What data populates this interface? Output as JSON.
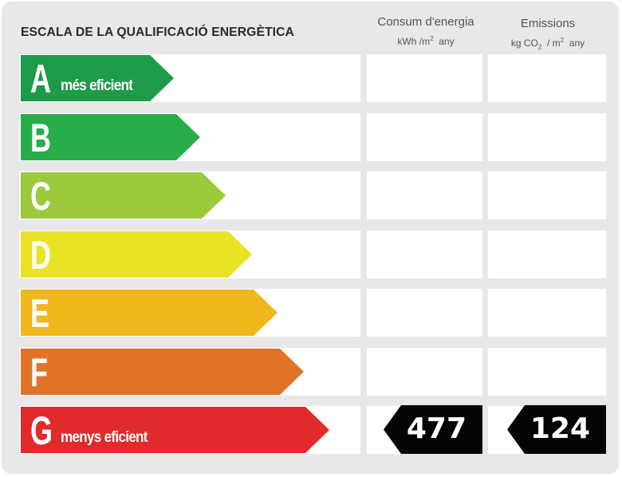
{
  "title": "ESCALA DE LA QUALIFICACIÓ ENERGÈTICA",
  "columns": {
    "energy": {
      "label": "Consum d'energia",
      "unit_prefix": "kWh /m",
      "unit_sup": "2",
      "unit_suffix": "any"
    },
    "emissions": {
      "label": "Emissions",
      "unit_prefix": "kg CO",
      "unit_sub": "2",
      "unit_mid": "/ m",
      "unit_sup": "2",
      "unit_suffix": "any"
    }
  },
  "classes": [
    {
      "letter": "A",
      "description": "més eficient",
      "color": "#1e9b48"
    },
    {
      "letter": "B",
      "description": "",
      "color": "#29ad4a"
    },
    {
      "letter": "C",
      "description": "",
      "color": "#9cc83c"
    },
    {
      "letter": "D",
      "description": "",
      "color": "#e8e324"
    },
    {
      "letter": "E",
      "description": "",
      "color": "#f0b81c"
    },
    {
      "letter": "F",
      "description": "",
      "color": "#e07328"
    },
    {
      "letter": "G",
      "description": "menys eficient",
      "color": "#e02a2b"
    }
  ],
  "rating": {
    "class": "G",
    "energy_value": "477",
    "emissions_value": "124",
    "marker_color": "#050505"
  }
}
